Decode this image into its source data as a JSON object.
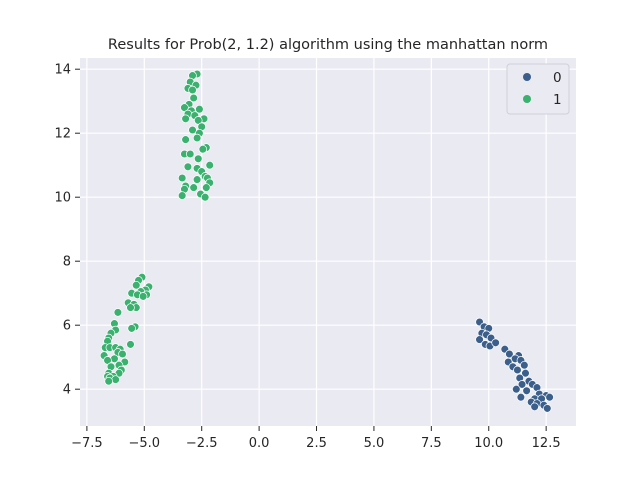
{
  "chart_data": {
    "type": "scatter",
    "title": "Results for Prob(2, 1.2) algorithm using the manhattan norm",
    "xlabel": "",
    "ylabel": "",
    "xlim": [
      -7.8,
      13.8
    ],
    "ylim": [
      2.85,
      14.35
    ],
    "x_ticks": [
      -7.5,
      -5.0,
      -2.5,
      0.0,
      2.5,
      5.0,
      7.5,
      10.0,
      12.5
    ],
    "x_tick_labels": [
      "−7.5",
      "−5.0",
      "−2.5",
      "0.0",
      "2.5",
      "5.0",
      "7.5",
      "10.0",
      "12.5"
    ],
    "y_ticks": [
      4,
      6,
      8,
      10,
      12,
      14
    ],
    "y_tick_labels": [
      "4",
      "6",
      "8",
      "10",
      "12",
      "14"
    ],
    "grid": true,
    "legend_position": "top-right",
    "series": [
      {
        "name": "0",
        "color": "#3b5f8a",
        "points": [
          [
            9.6,
            6.1
          ],
          [
            9.8,
            5.95
          ],
          [
            10.0,
            5.9
          ],
          [
            9.7,
            5.75
          ],
          [
            9.9,
            5.7
          ],
          [
            10.1,
            5.6
          ],
          [
            9.6,
            5.55
          ],
          [
            9.85,
            5.4
          ],
          [
            10.05,
            5.35
          ],
          [
            10.3,
            5.45
          ],
          [
            10.7,
            5.25
          ],
          [
            10.9,
            5.1
          ],
          [
            11.3,
            5.05
          ],
          [
            11.15,
            4.95
          ],
          [
            11.4,
            4.9
          ],
          [
            10.85,
            4.85
          ],
          [
            11.05,
            4.7
          ],
          [
            11.55,
            4.75
          ],
          [
            11.25,
            4.6
          ],
          [
            11.6,
            4.5
          ],
          [
            11.35,
            4.35
          ],
          [
            11.75,
            4.25
          ],
          [
            11.45,
            4.15
          ],
          [
            11.9,
            4.15
          ],
          [
            12.1,
            4.05
          ],
          [
            11.2,
            4.0
          ],
          [
            11.65,
            3.95
          ],
          [
            12.2,
            3.85
          ],
          [
            12.5,
            3.8
          ],
          [
            12.0,
            3.7
          ],
          [
            12.3,
            3.7
          ],
          [
            11.4,
            3.75
          ],
          [
            12.65,
            3.75
          ],
          [
            11.85,
            3.6
          ],
          [
            12.1,
            3.55
          ],
          [
            12.4,
            3.5
          ],
          [
            12.0,
            3.45
          ],
          [
            12.55,
            3.4
          ]
        ]
      },
      {
        "name": "1",
        "color": "#3ab16e",
        "points": [
          [
            -2.7,
            13.85
          ],
          [
            -2.9,
            13.8
          ],
          [
            -3.0,
            13.6
          ],
          [
            -2.75,
            13.5
          ],
          [
            -3.1,
            13.4
          ],
          [
            -2.9,
            13.35
          ],
          [
            -2.85,
            13.1
          ],
          [
            -3.05,
            12.9
          ],
          [
            -3.25,
            12.8
          ],
          [
            -2.6,
            12.75
          ],
          [
            -2.95,
            12.7
          ],
          [
            -3.1,
            12.6
          ],
          [
            -2.8,
            12.55
          ],
          [
            -2.4,
            12.45
          ],
          [
            -3.2,
            12.45
          ],
          [
            -2.65,
            12.4
          ],
          [
            -2.5,
            12.2
          ],
          [
            -2.9,
            12.1
          ],
          [
            -2.6,
            12.0
          ],
          [
            -2.7,
            11.85
          ],
          [
            -3.2,
            11.8
          ],
          [
            -2.3,
            11.55
          ],
          [
            -2.45,
            11.5
          ],
          [
            -3.25,
            11.35
          ],
          [
            -3.0,
            11.35
          ],
          [
            -2.65,
            11.2
          ],
          [
            -2.15,
            11.0
          ],
          [
            -3.1,
            10.95
          ],
          [
            -2.7,
            10.9
          ],
          [
            -2.5,
            10.8
          ],
          [
            -2.35,
            10.65
          ],
          [
            -2.25,
            10.6
          ],
          [
            -3.35,
            10.6
          ],
          [
            -2.7,
            10.55
          ],
          [
            -2.15,
            10.45
          ],
          [
            -3.2,
            10.35
          ],
          [
            -2.3,
            10.3
          ],
          [
            -2.85,
            10.3
          ],
          [
            -3.25,
            10.25
          ],
          [
            -2.55,
            10.1
          ],
          [
            -3.35,
            10.05
          ],
          [
            -2.35,
            10.0
          ],
          [
            -5.1,
            7.5
          ],
          [
            -5.25,
            7.4
          ],
          [
            -4.8,
            7.2
          ],
          [
            -5.35,
            7.25
          ],
          [
            -4.95,
            7.1
          ],
          [
            -5.15,
            7.05
          ],
          [
            -4.9,
            6.95
          ],
          [
            -5.55,
            7.0
          ],
          [
            -5.3,
            6.95
          ],
          [
            -5.05,
            6.9
          ],
          [
            -5.7,
            6.7
          ],
          [
            -5.45,
            6.65
          ],
          [
            -5.35,
            6.55
          ],
          [
            -5.6,
            6.55
          ],
          [
            -6.15,
            6.4
          ],
          [
            -5.4,
            5.95
          ],
          [
            -5.55,
            5.9
          ],
          [
            -6.3,
            6.05
          ],
          [
            -6.25,
            5.85
          ],
          [
            -6.45,
            5.75
          ],
          [
            -6.55,
            5.6
          ],
          [
            -6.6,
            5.5
          ],
          [
            -6.7,
            5.3
          ],
          [
            -6.5,
            5.3
          ],
          [
            -6.25,
            5.3
          ],
          [
            -6.05,
            5.25
          ],
          [
            -5.6,
            5.4
          ],
          [
            -6.15,
            5.15
          ],
          [
            -5.95,
            5.1
          ],
          [
            -6.75,
            5.05
          ],
          [
            -6.3,
            4.95
          ],
          [
            -6.6,
            4.9
          ],
          [
            -5.85,
            4.85
          ],
          [
            -6.1,
            4.75
          ],
          [
            -6.45,
            4.7
          ],
          [
            -6.0,
            4.6
          ],
          [
            -6.55,
            4.5
          ],
          [
            -6.1,
            4.5
          ],
          [
            -6.6,
            4.4
          ],
          [
            -6.35,
            4.4
          ],
          [
            -6.5,
            4.35
          ],
          [
            -6.25,
            4.3
          ],
          [
            -6.55,
            4.25
          ]
        ]
      }
    ]
  }
}
